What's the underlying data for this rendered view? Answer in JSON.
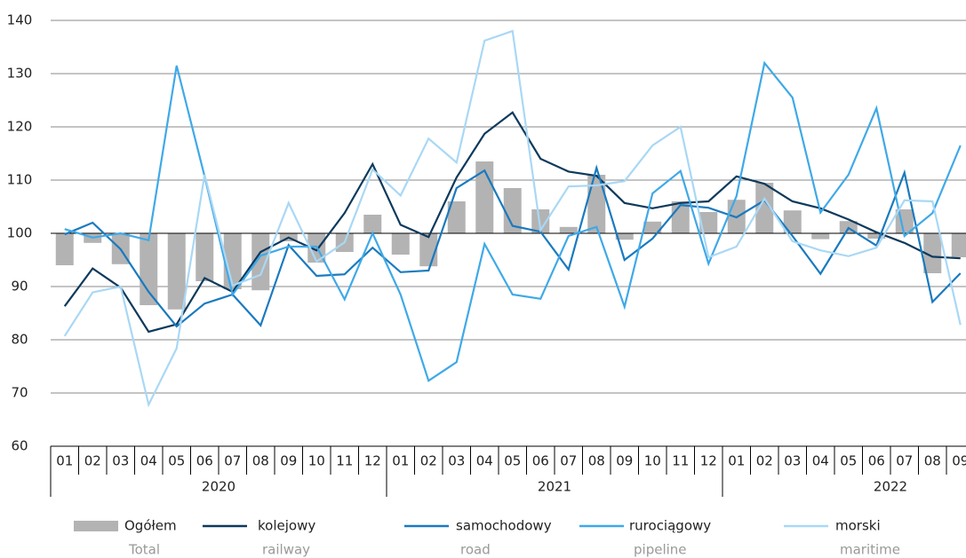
{
  "chart_data": {
    "type": "bar-line",
    "categories": [
      "01",
      "02",
      "03",
      "04",
      "05",
      "06",
      "07",
      "08",
      "09",
      "10",
      "11",
      "12",
      "01",
      "02",
      "03",
      "04",
      "05",
      "06",
      "07",
      "08",
      "09",
      "10",
      "11",
      "12",
      "01",
      "02",
      "03",
      "04",
      "05",
      "06",
      "07",
      "08",
      "09"
    ],
    "years": [
      "2020",
      "2021",
      "2022"
    ],
    "ylim": [
      60,
      140
    ],
    "yticks": [
      60,
      70,
      80,
      90,
      100,
      110,
      120,
      130,
      140
    ],
    "grid": true,
    "bar_base": 100,
    "legend": "bottom",
    "series": [
      {
        "name": "Ogółem",
        "name_en": "Total",
        "kind": "bar",
        "color": "#b3b3b3",
        "values": [
          94,
          98.2,
          94.2,
          86.5,
          85.7,
          91,
          89.5,
          89.3,
          98.5,
          94.5,
          96.5,
          103.5,
          96,
          93.8,
          106,
          113.5,
          108.5,
          104.5,
          101.2,
          111,
          98.8,
          102.2,
          106,
          104,
          106.3,
          109.5,
          104.3,
          98.9,
          102.3,
          99,
          104.5,
          92.5,
          95.5
        ]
      },
      {
        "name": "kolejowy",
        "name_en": "railway",
        "kind": "line",
        "color": "#0d3a5c",
        "values": [
          86.3,
          93.4,
          89.8,
          81.5,
          82.9,
          91.6,
          89,
          96.5,
          99.2,
          96.8,
          103.8,
          113,
          101.6,
          99.3,
          110.5,
          118.7,
          122.7,
          114,
          111.6,
          110.8,
          105.7,
          104.7,
          105.7,
          106,
          110.7,
          109.3,
          106,
          104.7,
          102.6,
          100.2,
          98.2,
          95.6,
          95.3
        ]
      },
      {
        "name": "samochodowy",
        "name_en": "road",
        "kind": "line",
        "color": "#1a7abf",
        "values": [
          99.8,
          102,
          97,
          89,
          82.5,
          86.8,
          88.5,
          82.7,
          97.8,
          92,
          92.3,
          97.3,
          92.7,
          93,
          108.5,
          111.8,
          101.4,
          100.3,
          93.2,
          112.3,
          95,
          99,
          105.3,
          104.8,
          103,
          106.2,
          99.5,
          92.4,
          101,
          97.7,
          111.4,
          87.1,
          92.5
        ]
      },
      {
        "name": "rurociągowy",
        "name_en": "pipeline",
        "kind": "line",
        "color": "#3fa9e8",
        "values": [
          100.8,
          99.2,
          100,
          98.7,
          131.5,
          110.7,
          88.5,
          95.8,
          97.5,
          97.5,
          87.6,
          100,
          88.5,
          72.3,
          75.8,
          98,
          88.5,
          87.7,
          99.5,
          101.2,
          86.2,
          107.5,
          111.7,
          94.3,
          107,
          132,
          125.5,
          103.9,
          111,
          123.5,
          99.5,
          103.8,
          116.5
        ]
      },
      {
        "name": "morski",
        "name_en": "maritime",
        "kind": "line",
        "color": "#a9d8f5",
        "values": [
          80.7,
          88.9,
          90,
          67.8,
          78.4,
          111,
          90.2,
          92.2,
          105.7,
          94.7,
          98.3,
          112,
          107.1,
          117.8,
          113.3,
          136.2,
          138,
          100.6,
          108.8,
          109,
          109.8,
          116.5,
          120,
          95.5,
          97.5,
          106.5,
          98.5,
          96.8,
          95.7,
          97.3,
          106.2,
          106,
          82.8
        ]
      }
    ]
  }
}
